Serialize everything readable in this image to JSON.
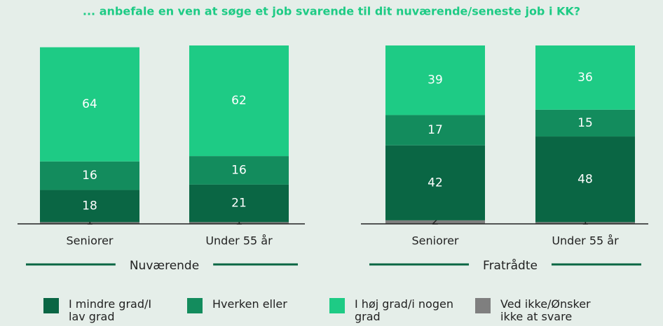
{
  "chart_data": {
    "type": "bar",
    "stacked": true,
    "title": "... anbefale en ven at søge et job svarende til dit nuværende/seneste job i KK?",
    "groups": [
      "Nuværende",
      "Fratrådte"
    ],
    "categories": [
      "Seniorer",
      "Under 55 år",
      "Seniorer",
      "Under 55 år"
    ],
    "ylim": [
      0,
      100
    ],
    "series": [
      {
        "name": "Ved ikke/Ønsker ikke at svare",
        "color": "#7f7f7f",
        "values": [
          1,
          1,
          2,
          1
        ]
      },
      {
        "name": "I mindre grad/I lav grad",
        "color": "#0a6644",
        "values": [
          18,
          21,
          42,
          48
        ]
      },
      {
        "name": "Hverken eller",
        "color": "#138c5d",
        "values": [
          16,
          16,
          17,
          15
        ]
      },
      {
        "name": "I høj grad/i nogen grad",
        "color": "#1ecb85",
        "values": [
          64,
          62,
          39,
          36
        ]
      }
    ]
  }
}
